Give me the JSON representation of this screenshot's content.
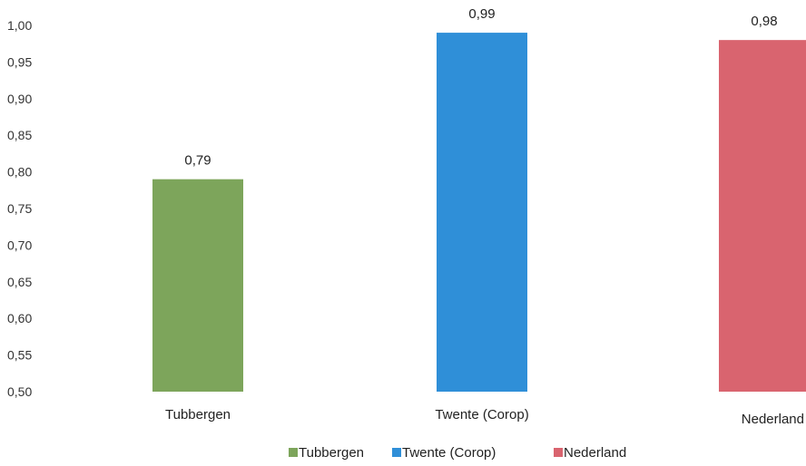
{
  "chart_data": {
    "type": "bar",
    "categories": [
      "Tubbergen",
      "Twente (Corop)",
      "Nederland"
    ],
    "values": [
      0.79,
      0.99,
      0.98
    ],
    "data_labels": [
      "0,79",
      "0,99",
      "0,98"
    ],
    "colors": [
      "#7da55b",
      "#2f8fd8",
      "#d9646f"
    ],
    "ylim": [
      0.5,
      1.0
    ],
    "yticks": [
      "0,50",
      "0,55",
      "0,60",
      "0,65",
      "0,70",
      "0,75",
      "0,80",
      "0,85",
      "0,90",
      "0,95",
      "1,00"
    ],
    "grid": false,
    "legend": {
      "placement": "bottom",
      "entries": [
        "Tubbergen",
        "Twente (Corop)",
        "Nederland"
      ]
    },
    "title": "",
    "xlabel": "",
    "ylabel": ""
  }
}
